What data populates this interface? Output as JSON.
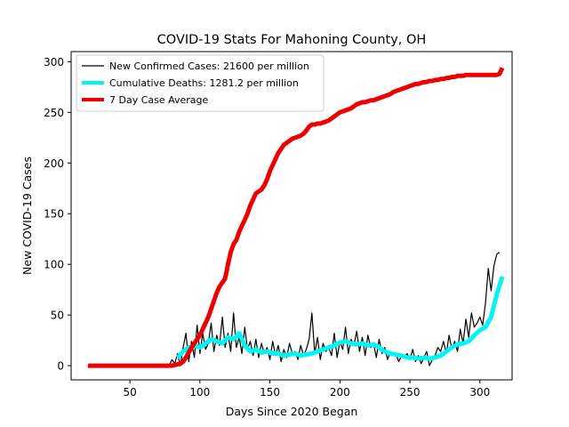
{
  "chart_data": {
    "type": "line",
    "title": "COVID-19 Stats For Mahoning County, OH",
    "xlabel": "Days Since 2020 Began",
    "ylabel": "New COVID-19 Cases",
    "xlim": [
      8,
      323
    ],
    "ylim": [
      -14,
      310
    ],
    "xticks": [
      50,
      100,
      150,
      200,
      250,
      300
    ],
    "yticks": [
      0,
      50,
      100,
      150,
      200,
      250,
      300
    ],
    "grid": false,
    "legend_position": "top-left",
    "series": [
      {
        "name": "New Confirmed Cases: 21600 per million",
        "color": "#000000",
        "x": [
          20,
          30,
          40,
          50,
          60,
          70,
          78,
          80,
          82,
          84,
          86,
          88,
          90,
          92,
          94,
          96,
          98,
          100,
          102,
          104,
          106,
          108,
          110,
          112,
          114,
          116,
          118,
          120,
          122,
          124,
          126,
          128,
          130,
          132,
          134,
          136,
          138,
          140,
          142,
          144,
          146,
          148,
          150,
          152,
          154,
          156,
          158,
          160,
          162,
          164,
          166,
          168,
          170,
          172,
          174,
          176,
          178,
          180,
          182,
          184,
          186,
          188,
          190,
          192,
          194,
          196,
          198,
          200,
          202,
          204,
          206,
          208,
          210,
          212,
          214,
          216,
          218,
          220,
          222,
          224,
          226,
          228,
          230,
          232,
          234,
          236,
          238,
          240,
          242,
          244,
          246,
          248,
          250,
          252,
          254,
          256,
          258,
          260,
          262,
          264,
          266,
          268,
          270,
          272,
          274,
          276,
          278,
          280,
          282,
          284,
          286,
          288,
          290,
          292,
          294,
          296,
          298,
          300,
          302,
          304,
          306,
          308,
          310,
          312,
          314
        ],
        "values": [
          0,
          0,
          0,
          0,
          0,
          0,
          0,
          6,
          2,
          12,
          0,
          18,
          32,
          4,
          24,
          8,
          40,
          12,
          32,
          16,
          22,
          42,
          14,
          30,
          20,
          48,
          18,
          32,
          14,
          52,
          18,
          28,
          12,
          38,
          16,
          24,
          10,
          26,
          8,
          22,
          12,
          18,
          6,
          24,
          10,
          20,
          4,
          16,
          8,
          22,
          12,
          14,
          6,
          20,
          10,
          16,
          26,
          52,
          12,
          28,
          6,
          22,
          14,
          18,
          10,
          32,
          8,
          24,
          16,
          38,
          12,
          26,
          20,
          34,
          14,
          28,
          10,
          30,
          18,
          22,
          8,
          26,
          12,
          18,
          6,
          14,
          10,
          12,
          4,
          10,
          8,
          12,
          6,
          16,
          4,
          10,
          2,
          8,
          14,
          0,
          6,
          10,
          18,
          14,
          24,
          12,
          30,
          16,
          24,
          14,
          36,
          22,
          46,
          28,
          52,
          38,
          42,
          48,
          40,
          62,
          96,
          74,
          98,
          110,
          112
        ]
      },
      {
        "name": "Cumulative Deaths: 1281.2 per million",
        "color": "#00f5f5",
        "x": [
          84,
          88,
          92,
          96,
          100,
          104,
          108,
          112,
          116,
          120,
          124,
          128,
          132,
          136,
          140,
          144,
          148,
          152,
          156,
          160,
          164,
          168,
          172,
          176,
          180,
          184,
          188,
          192,
          196,
          200,
          204,
          208,
          212,
          216,
          220,
          224,
          228,
          232,
          236,
          240,
          244,
          248,
          252,
          256,
          260,
          264,
          268,
          272,
          276,
          280,
          284,
          288,
          292,
          296,
          300,
          304,
          308,
          312,
          316
        ],
        "values": [
          8,
          14,
          18,
          20,
          18,
          22,
          26,
          24,
          22,
          28,
          26,
          32,
          20,
          14,
          16,
          13,
          14,
          12,
          12,
          10,
          11,
          12,
          10,
          11,
          12,
          14,
          16,
          18,
          20,
          23,
          24,
          22,
          21,
          22,
          20,
          21,
          18,
          14,
          12,
          11,
          10,
          8,
          8,
          7,
          8,
          7,
          8,
          10,
          14,
          18,
          21,
          22,
          24,
          30,
          35,
          38,
          48,
          70,
          88
        ]
      },
      {
        "name": "7 Day Case Average",
        "color": "#ee0000",
        "x": [
          20,
          40,
          60,
          80,
          86,
          88,
          90,
          92,
          94,
          96,
          98,
          100,
          102,
          104,
          106,
          108,
          110,
          112,
          114,
          116,
          118,
          120,
          122,
          124,
          126,
          128,
          130,
          132,
          134,
          136,
          138,
          140,
          142,
          144,
          146,
          148,
          150,
          152,
          154,
          156,
          158,
          160,
          162,
          164,
          166,
          168,
          170,
          172,
          174,
          176,
          178,
          180,
          182,
          184,
          186,
          188,
          190,
          192,
          194,
          196,
          198,
          200,
          202,
          204,
          206,
          208,
          210,
          212,
          214,
          216,
          218,
          220,
          222,
          224,
          226,
          228,
          230,
          232,
          234,
          236,
          238,
          240,
          242,
          244,
          246,
          248,
          250,
          252,
          254,
          256,
          258,
          260,
          262,
          264,
          266,
          268,
          270,
          272,
          274,
          276,
          278,
          280,
          282,
          284,
          286,
          288,
          290,
          292,
          294,
          296,
          298,
          300,
          302,
          304,
          306,
          308,
          310,
          312,
          314,
          316
        ],
        "values": [
          0,
          0,
          0,
          0,
          2,
          4,
          8,
          13,
          18,
          22,
          26,
          30,
          36,
          42,
          48,
          56,
          64,
          72,
          78,
          82,
          86,
          100,
          112,
          120,
          124,
          132,
          138,
          144,
          150,
          158,
          164,
          170,
          172,
          174,
          178,
          184,
          192,
          198,
          204,
          210,
          214,
          218,
          220,
          222,
          224,
          225,
          226,
          227,
          229,
          232,
          236,
          238,
          238,
          239,
          239,
          240,
          241,
          242,
          244,
          246,
          248,
          250,
          251,
          252,
          253,
          254,
          256,
          258,
          259,
          260,
          260,
          261,
          262,
          262,
          263,
          264,
          265,
          266,
          267,
          268,
          270,
          271,
          272,
          273,
          274,
          275,
          276,
          277,
          278,
          278,
          279,
          280,
          280,
          281,
          281,
          282,
          282,
          283,
          283,
          284,
          284,
          285,
          285,
          286,
          286,
          286,
          287,
          287,
          287,
          287,
          287,
          287,
          287,
          287,
          287,
          287,
          287,
          287,
          288,
          294
        ]
      }
    ]
  }
}
